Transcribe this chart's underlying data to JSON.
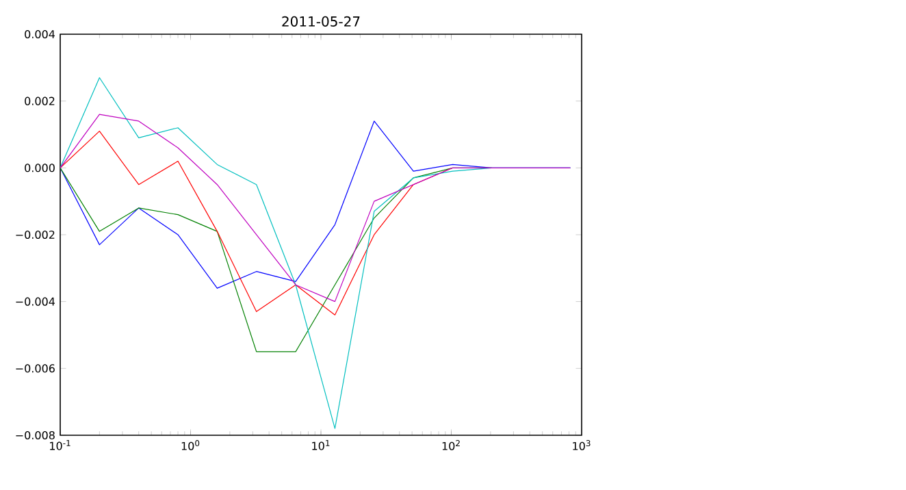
{
  "chart_data": {
    "type": "line",
    "title": "2011-05-27",
    "x": [
      0.1,
      0.2,
      0.4,
      0.8,
      1.6,
      3.2,
      6.4,
      12.8,
      25.6,
      51.2,
      102.4,
      204.8,
      409.6,
      819.2
    ],
    "series": [
      {
        "color": "#0000ff",
        "values": [
          0,
          -0.0023,
          -0.0012,
          -0.002,
          -0.0036,
          -0.0031,
          -0.0034,
          -0.0017,
          0.0014,
          -0.0001,
          0.0001,
          0,
          0,
          0
        ]
      },
      {
        "color": "#008000",
        "values": [
          0,
          -0.0019,
          -0.0012,
          -0.0014,
          -0.0019,
          -0.0055,
          -0.0055,
          -0.0035,
          -0.0015,
          -0.0003,
          0,
          0,
          null,
          null
        ]
      },
      {
        "color": "#ff0000",
        "values": [
          0,
          0.0011,
          -0.0005,
          0.0002,
          -0.0019,
          -0.0043,
          -0.0035,
          -0.0044,
          -0.002,
          -0.0005,
          0,
          null,
          null,
          null
        ]
      },
      {
        "color": "#00bfbf",
        "values": [
          0,
          0.0027,
          0.0009,
          0.0012,
          0.0001,
          -0.0005,
          -0.0035,
          -0.0078,
          -0.0013,
          -0.0003,
          -0.0001,
          0,
          0,
          0
        ]
      },
      {
        "color": "#bf00bf",
        "values": [
          0,
          0.0016,
          0.0014,
          0.0006,
          -0.0005,
          -0.002,
          -0.0035,
          -0.004,
          -0.001,
          -0.0005,
          0,
          0,
          0,
          0
        ]
      }
    ],
    "log": "x",
    "xlim": [
      0.1,
      1000
    ],
    "xticks": [
      {
        "value": 0.1,
        "label": "10$^{-1}$"
      },
      {
        "value": 1,
        "label": "10$^{0}$"
      },
      {
        "value": 10,
        "label": "10$^{1}$"
      },
      {
        "value": 100,
        "label": "10$^{2}$"
      },
      {
        "value": 1000,
        "label": "10$^{3}$"
      }
    ],
    "ylim": [
      -0.008,
      0.004
    ],
    "yticks": [
      {
        "value": -0.008,
        "label": "−0.008"
      },
      {
        "value": -0.006,
        "label": "−0.006"
      },
      {
        "value": -0.004,
        "label": "−0.004"
      },
      {
        "value": -0.002,
        "label": "−0.002"
      },
      {
        "value": 0,
        "label": "0.000"
      },
      {
        "value": 0.002,
        "label": "0.002"
      },
      {
        "value": 0.004,
        "label": "0.004"
      }
    ],
    "grid": false,
    "marker": "none",
    "line_style": "solid"
  }
}
